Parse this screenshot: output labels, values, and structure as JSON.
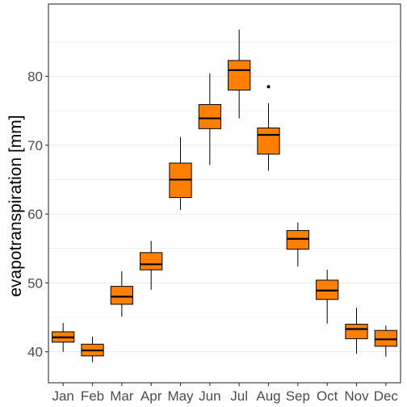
{
  "chart_data": {
    "type": "boxplot",
    "title": "",
    "xlabel": "",
    "ylabel": "evapotranspiration [mm]",
    "ylim": [
      35.5,
      90.5
    ],
    "yticks": [
      40,
      50,
      60,
      70,
      80
    ],
    "grid": true,
    "legend": "none",
    "colors": {
      "box_fill": "#ff8000",
      "stroke": "#000000",
      "grid": "#ebebeb",
      "panel_border": "#333333"
    },
    "categories": [
      "Jan",
      "Feb",
      "Mar",
      "Apr",
      "May",
      "Jun",
      "Jul",
      "Aug",
      "Sep",
      "Oct",
      "Nov",
      "Dec"
    ],
    "boxes": [
      {
        "category": "Jan",
        "whisker_low": 40.0,
        "q1": 41.4,
        "median": 42.1,
        "q3": 42.9,
        "whisker_high": 44.2,
        "outliers": []
      },
      {
        "category": "Feb",
        "whisker_low": 38.5,
        "q1": 39.4,
        "median": 40.2,
        "q3": 41.1,
        "whisker_high": 42.2,
        "outliers": []
      },
      {
        "category": "Mar",
        "whisker_low": 45.1,
        "q1": 46.9,
        "median": 48.0,
        "q3": 49.5,
        "whisker_high": 51.7,
        "outliers": []
      },
      {
        "category": "Apr",
        "whisker_low": 49.0,
        "q1": 51.9,
        "median": 52.7,
        "q3": 54.4,
        "whisker_high": 56.1,
        "outliers": []
      },
      {
        "category": "May",
        "whisker_low": 60.6,
        "q1": 62.4,
        "median": 65.0,
        "q3": 67.4,
        "whisker_high": 71.2,
        "outliers": []
      },
      {
        "category": "Jun",
        "whisker_low": 67.1,
        "q1": 72.4,
        "median": 73.9,
        "q3": 75.9,
        "whisker_high": 80.4,
        "outliers": []
      },
      {
        "category": "Jul",
        "whisker_low": 73.9,
        "q1": 78.0,
        "median": 80.9,
        "q3": 82.3,
        "whisker_high": 86.8,
        "outliers": []
      },
      {
        "category": "Aug",
        "whisker_low": 66.3,
        "q1": 68.7,
        "median": 71.5,
        "q3": 72.5,
        "whisker_high": 76.1,
        "outliers": [
          78.5
        ]
      },
      {
        "category": "Sep",
        "whisker_low": 52.4,
        "q1": 54.9,
        "median": 56.4,
        "q3": 57.6,
        "whisker_high": 58.8,
        "outliers": []
      },
      {
        "category": "Oct",
        "whisker_low": 44.1,
        "q1": 47.6,
        "median": 48.9,
        "q3": 50.4,
        "whisker_high": 51.9,
        "outliers": []
      },
      {
        "category": "Nov",
        "whisker_low": 39.7,
        "q1": 41.9,
        "median": 43.3,
        "q3": 44.0,
        "whisker_high": 46.4,
        "outliers": []
      },
      {
        "category": "Dec",
        "whisker_low": 39.3,
        "q1": 40.8,
        "median": 41.8,
        "q3": 43.1,
        "whisker_high": 43.8,
        "outliers": []
      }
    ]
  }
}
